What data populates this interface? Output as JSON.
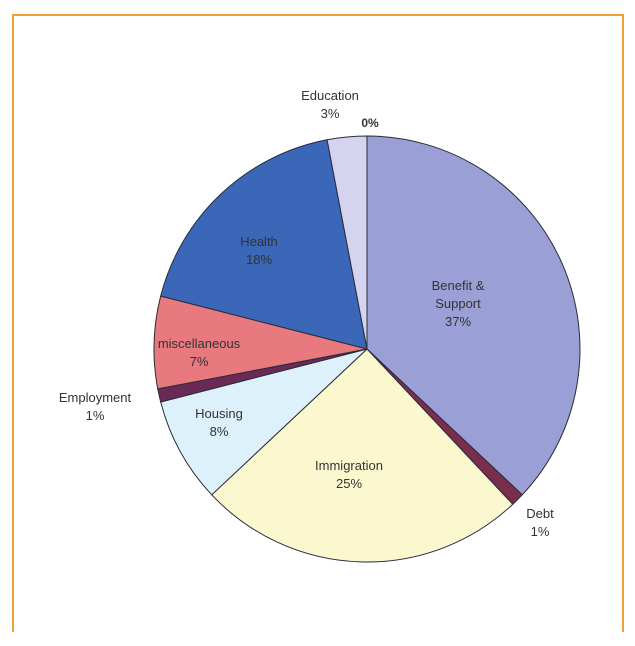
{
  "colors": {
    "frame_border": "#f0a030"
  },
  "chart_data": {
    "type": "pie",
    "title": "",
    "start_angle_deg": 0,
    "direction": "clockwise",
    "slices": [
      {
        "label": "Benefit &\nSupport",
        "value": 37,
        "display": "37%",
        "color": "#9a9fd6"
      },
      {
        "label": "Debt",
        "value": 1,
        "display": "1%",
        "color": "#7a2e4e"
      },
      {
        "label": "Immigration",
        "value": 25,
        "display": "25%",
        "color": "#fbf8cf"
      },
      {
        "label": "Housing",
        "value": 8,
        "display": "8%",
        "color": "#dcf1fa"
      },
      {
        "label": "Employment",
        "value": 1,
        "display": "1%",
        "color": "#6b2a55"
      },
      {
        "label": "miscellaneous",
        "value": 7,
        "display": "7%",
        "color": "#e8797e"
      },
      {
        "label": "Health",
        "value": 18,
        "display": "18%",
        "color": "#3a67b8"
      },
      {
        "label": "Education",
        "value": 3,
        "display": "3%",
        "color": "#d4d4f0"
      },
      {
        "label": "",
        "value": 0,
        "display": "0%",
        "color": "#333333"
      }
    ]
  }
}
